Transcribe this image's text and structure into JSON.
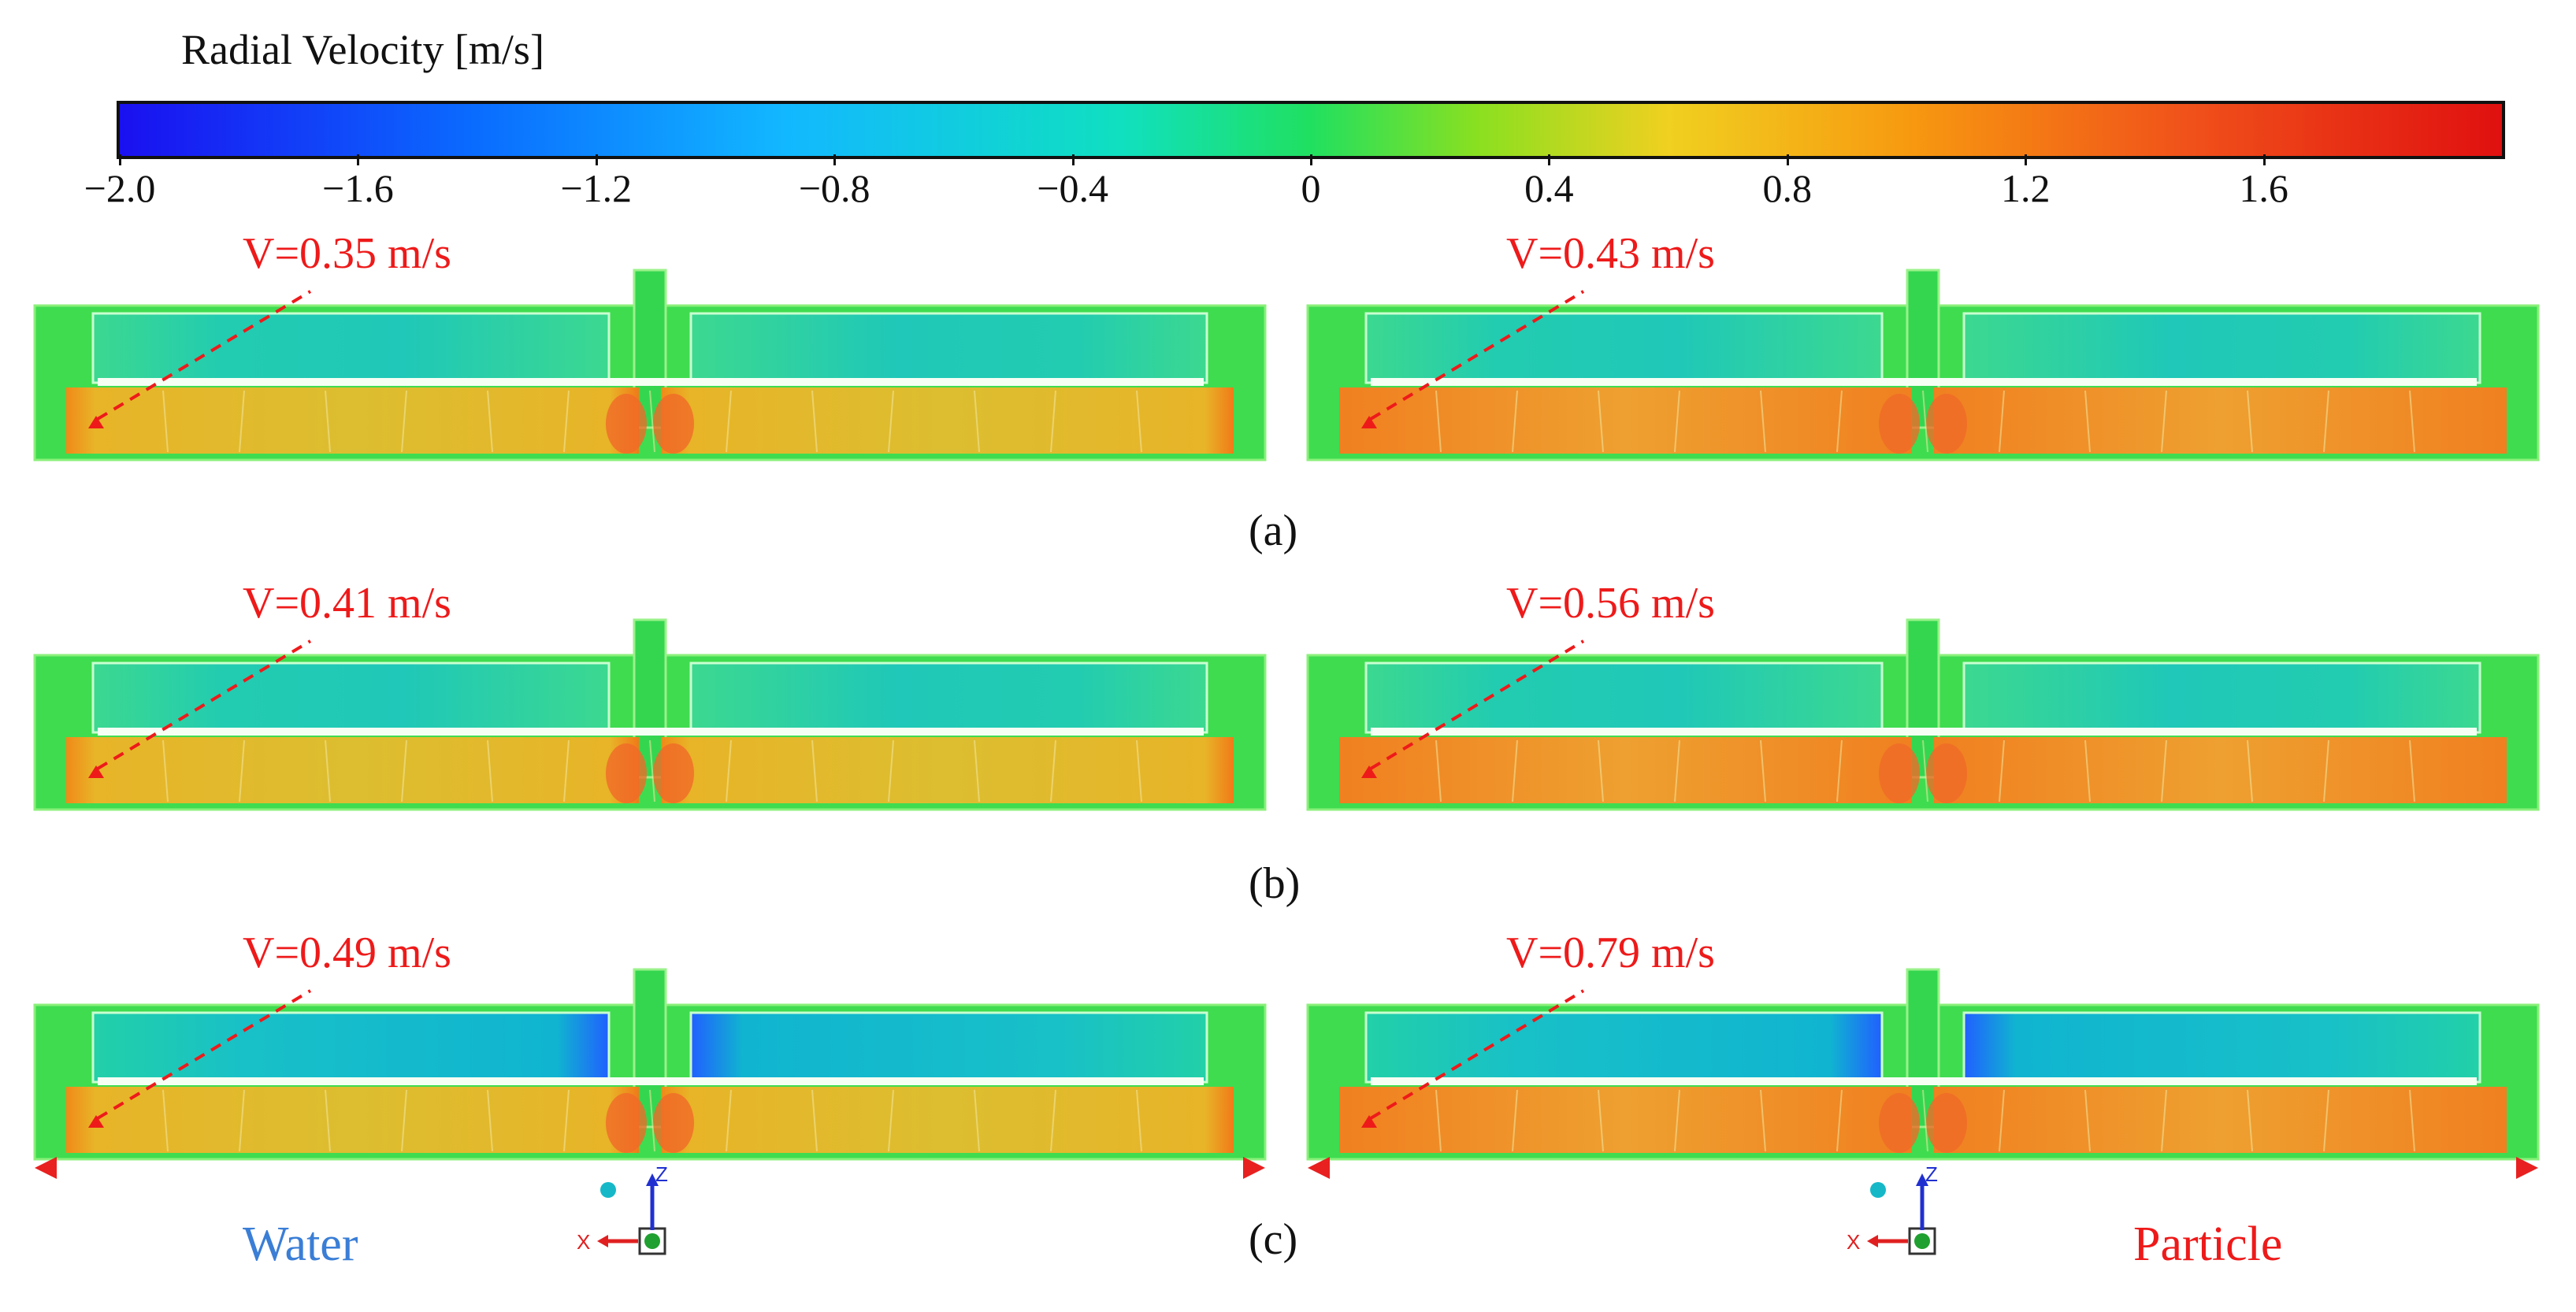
{
  "colorbar": {
    "title": "Radial Velocity [m/s]",
    "ticks": [
      "−2.0",
      "−1.6",
      "−1.2",
      "−0.8",
      "−0.4",
      "0",
      "0.4",
      "0.8",
      "1.2",
      "1.6"
    ],
    "tick_values": [
      -2.0,
      -1.6,
      -1.2,
      -0.8,
      -0.4,
      0,
      0.4,
      0.8,
      1.2,
      1.6
    ],
    "range": [
      -2.0,
      2.0
    ],
    "colors": {
      "low": "#1a10f0",
      "mid": "#20e060",
      "high": "#e01010"
    }
  },
  "rows": [
    {
      "label": "(a)",
      "water_velocity": "V=0.35 m/s",
      "particle_velocity": "V=0.43 m/s"
    },
    {
      "label": "(b)",
      "water_velocity": "V=0.41 m/s",
      "particle_velocity": "V=0.56 m/s"
    },
    {
      "label": "(c)",
      "water_velocity": "V=0.49 m/s",
      "particle_velocity": "V=0.79 m/s"
    }
  ],
  "fluids": {
    "left": "Water",
    "right": "Particle"
  },
  "axes_triad": {
    "z": "Z",
    "x": "X"
  },
  "colors": {
    "annotation": "#ee1a1a",
    "water_label": "#3a7ed6",
    "particle_label": "#ee1a1a"
  }
}
